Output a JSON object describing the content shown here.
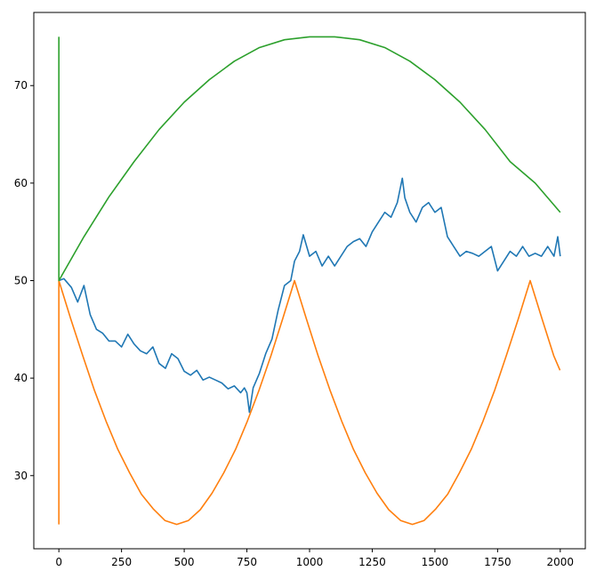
{
  "chart_data": {
    "type": "line",
    "title": "",
    "xlabel": "",
    "ylabel": "",
    "xlim": [
      -100,
      2100
    ],
    "ylim": [
      22.5,
      77.5
    ],
    "xticks": [
      0,
      250,
      500,
      750,
      1000,
      1250,
      1500,
      1750,
      2000
    ],
    "yticks": [
      30,
      40,
      50,
      60,
      70
    ],
    "xtick_labels": [
      "0",
      "250",
      "500",
      "750",
      "1000",
      "1250",
      "1500",
      "1750",
      "2000"
    ],
    "ytick_labels": [
      "30",
      "40",
      "50",
      "60",
      "70"
    ],
    "grid": false,
    "legend": "none",
    "series": [
      {
        "color": "#1f77b4",
        "x": [
          0,
          20,
          50,
          75,
          100,
          125,
          150,
          175,
          200,
          225,
          250,
          275,
          300,
          325,
          350,
          375,
          400,
          425,
          450,
          475,
          500,
          525,
          550,
          575,
          600,
          625,
          650,
          675,
          700,
          725,
          740,
          750,
          760,
          775,
          800,
          825,
          850,
          875,
          900,
          925,
          940,
          960,
          975,
          1000,
          1025,
          1050,
          1075,
          1100,
          1125,
          1150,
          1175,
          1200,
          1225,
          1250,
          1275,
          1300,
          1325,
          1350,
          1370,
          1380,
          1400,
          1425,
          1450,
          1475,
          1500,
          1525,
          1550,
          1575,
          1600,
          1625,
          1650,
          1675,
          1700,
          1725,
          1750,
          1775,
          1800,
          1825,
          1850,
          1875,
          1900,
          1925,
          1950,
          1975,
          1990,
          2000
        ],
        "y": [
          50,
          50.2,
          49.3,
          47.8,
          49.5,
          46.5,
          45,
          44.6,
          43.8,
          43.8,
          43.2,
          44.5,
          43.5,
          42.8,
          42.5,
          43.2,
          41.5,
          41,
          42.5,
          42,
          40.7,
          40.3,
          40.8,
          39.8,
          40.1,
          39.8,
          39.5,
          38.9,
          39.2,
          38.5,
          39,
          38.5,
          36.5,
          39,
          40.5,
          42.5,
          44,
          47,
          49.5,
          50,
          52,
          53,
          54.7,
          52.5,
          53,
          51.5,
          52.5,
          51.5,
          52.5,
          53.5,
          54,
          54.3,
          53.5,
          55,
          56,
          57,
          56.5,
          58,
          60.5,
          58.5,
          57,
          56,
          57.5,
          58,
          57,
          57.5,
          54.5,
          53.5,
          52.5,
          53,
          52.8,
          52.5,
          53,
          53.5,
          51,
          52,
          53,
          52.5,
          53.5,
          52.5,
          52.8,
          52.5,
          53.5,
          52.5,
          54.5,
          52.5
        ]
      },
      {
        "color": "#ff7f0e",
        "x": [
          0,
          0,
          47,
          94,
          141,
          188,
          235,
          282,
          329,
          376,
          423,
          470,
          517,
          564,
          611,
          658,
          705,
          752,
          799,
          846,
          893,
          940,
          987,
          1034,
          1081,
          1128,
          1175,
          1222,
          1269,
          1316,
          1363,
          1410,
          1457,
          1504,
          1551,
          1598,
          1645,
          1692,
          1739,
          1786,
          1833,
          1880,
          1927,
          1974,
          1999
        ],
        "y": [
          25,
          50,
          46.1,
          42.4,
          38.8,
          35.6,
          32.7,
          30.3,
          28.1,
          26.6,
          25.4,
          25,
          25.4,
          26.5,
          28.2,
          30.3,
          32.7,
          35.6,
          38.8,
          42.3,
          46.1,
          50,
          46.1,
          42.3,
          38.8,
          35.6,
          32.7,
          30.3,
          28.2,
          26.5,
          25.4,
          25,
          25.4,
          26.6,
          28.1,
          30.3,
          32.7,
          35.6,
          38.8,
          42.4,
          46.1,
          50,
          46.1,
          42.3,
          40.8
        ]
      },
      {
        "color": "#2ca02c",
        "x": [
          0,
          0,
          100,
          200,
          300,
          400,
          500,
          600,
          700,
          800,
          900,
          1000,
          1100,
          1200,
          1300,
          1400,
          1500,
          1600,
          1700,
          1800,
          1900,
          2000
        ],
        "y": [
          75,
          50,
          54.5,
          58.6,
          62.2,
          65.5,
          68.3,
          70.6,
          72.5,
          73.9,
          74.7,
          75,
          75,
          74.7,
          73.9,
          72.5,
          70.6,
          68.3,
          65.5,
          62.2,
          60,
          57
        ]
      }
    ]
  }
}
